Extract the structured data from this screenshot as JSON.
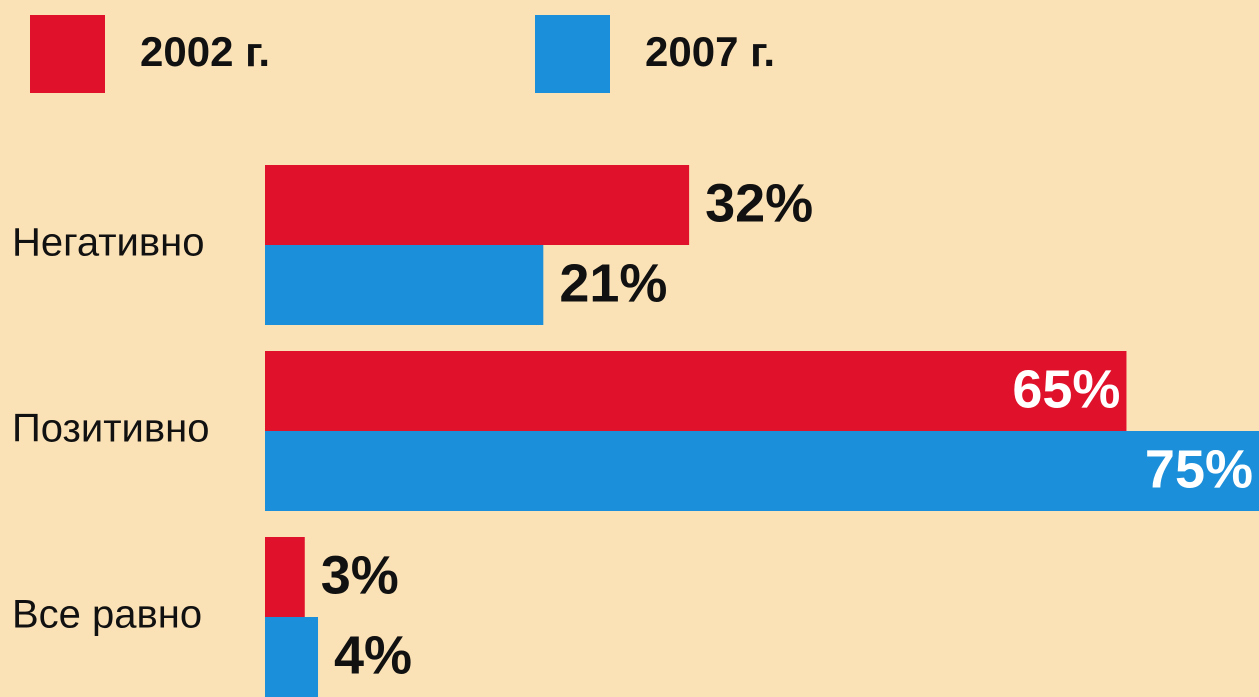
{
  "chart_data": {
    "type": "bar",
    "orientation": "horizontal",
    "categories": [
      "Негативно",
      "Позитивно",
      "Все равно"
    ],
    "series": [
      {
        "name": "2002 г.",
        "color": "#e0112b",
        "values": [
          32,
          65,
          3
        ],
        "value_labels": [
          "32%",
          "65%",
          "3%"
        ]
      },
      {
        "name": "2007 г.",
        "color": "#1b8fd9",
        "values": [
          21,
          75,
          4
        ],
        "value_labels": [
          "21%",
          "75%",
          "4%"
        ]
      }
    ]
  }
}
